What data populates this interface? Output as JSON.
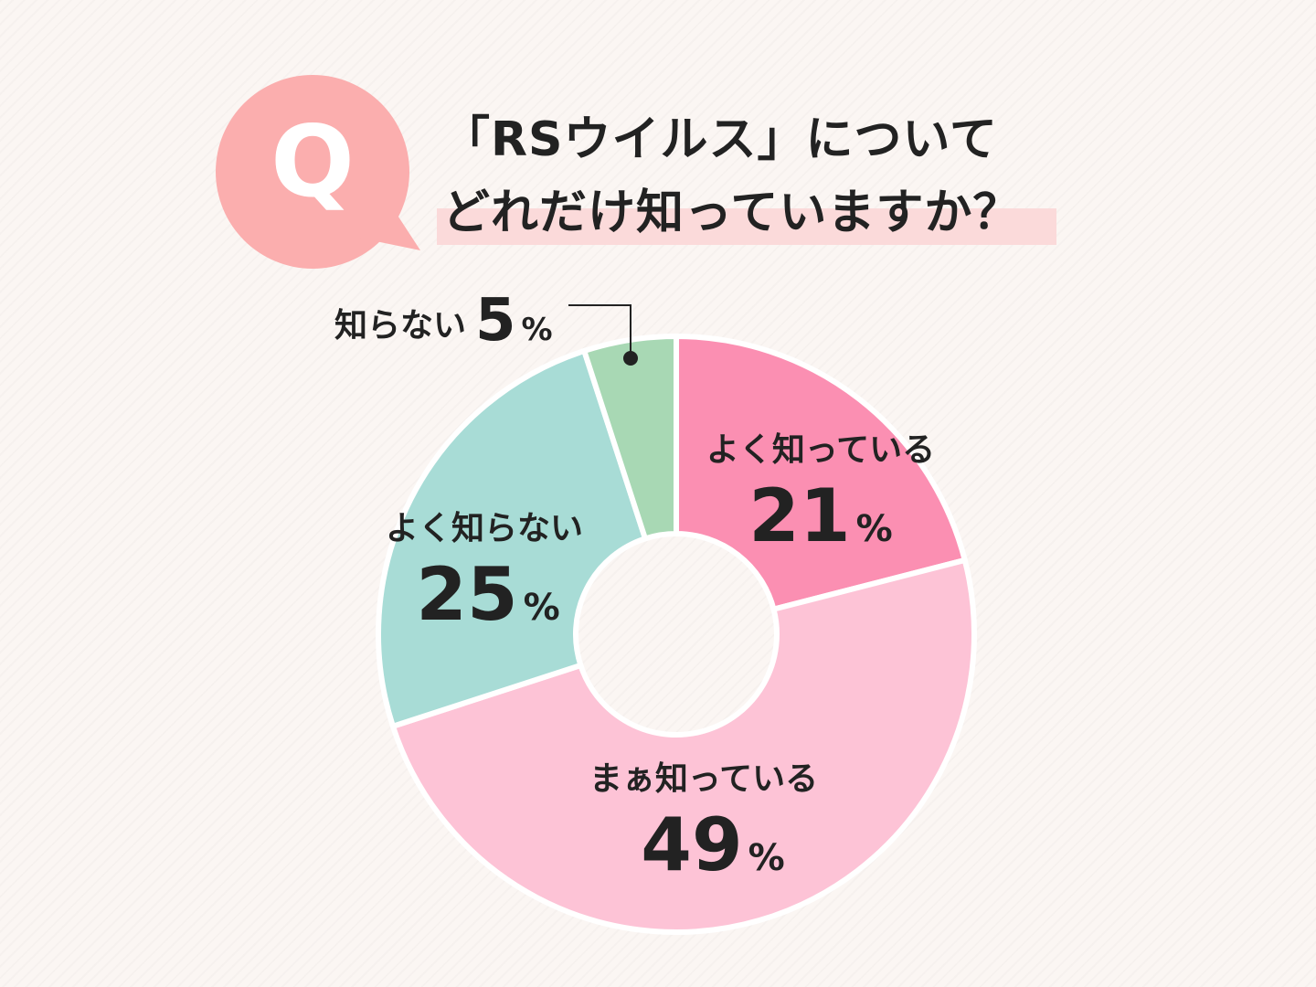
{
  "question": {
    "badge_letter": "Q",
    "title_line_1": "「RSウイルス」について",
    "title_line_2": "どれだけ知っていますか？",
    "badge_color": "#fbaeae",
    "highlight_color": "#fbdada"
  },
  "chart_data": {
    "type": "pie",
    "donut": true,
    "start": "12 o'clock, clockwise",
    "unit": "%",
    "slices": [
      {
        "label": "よく知っている",
        "value": 21,
        "color": "#fb8fb2"
      },
      {
        "label": "まぁ知っている",
        "value": 49,
        "color": "#fdc3d6"
      },
      {
        "label": "よく知らない",
        "value": 25,
        "color": "#a8dcd6"
      },
      {
        "label": "知らない",
        "value": 5,
        "color": "#a8d8b4"
      }
    ]
  }
}
